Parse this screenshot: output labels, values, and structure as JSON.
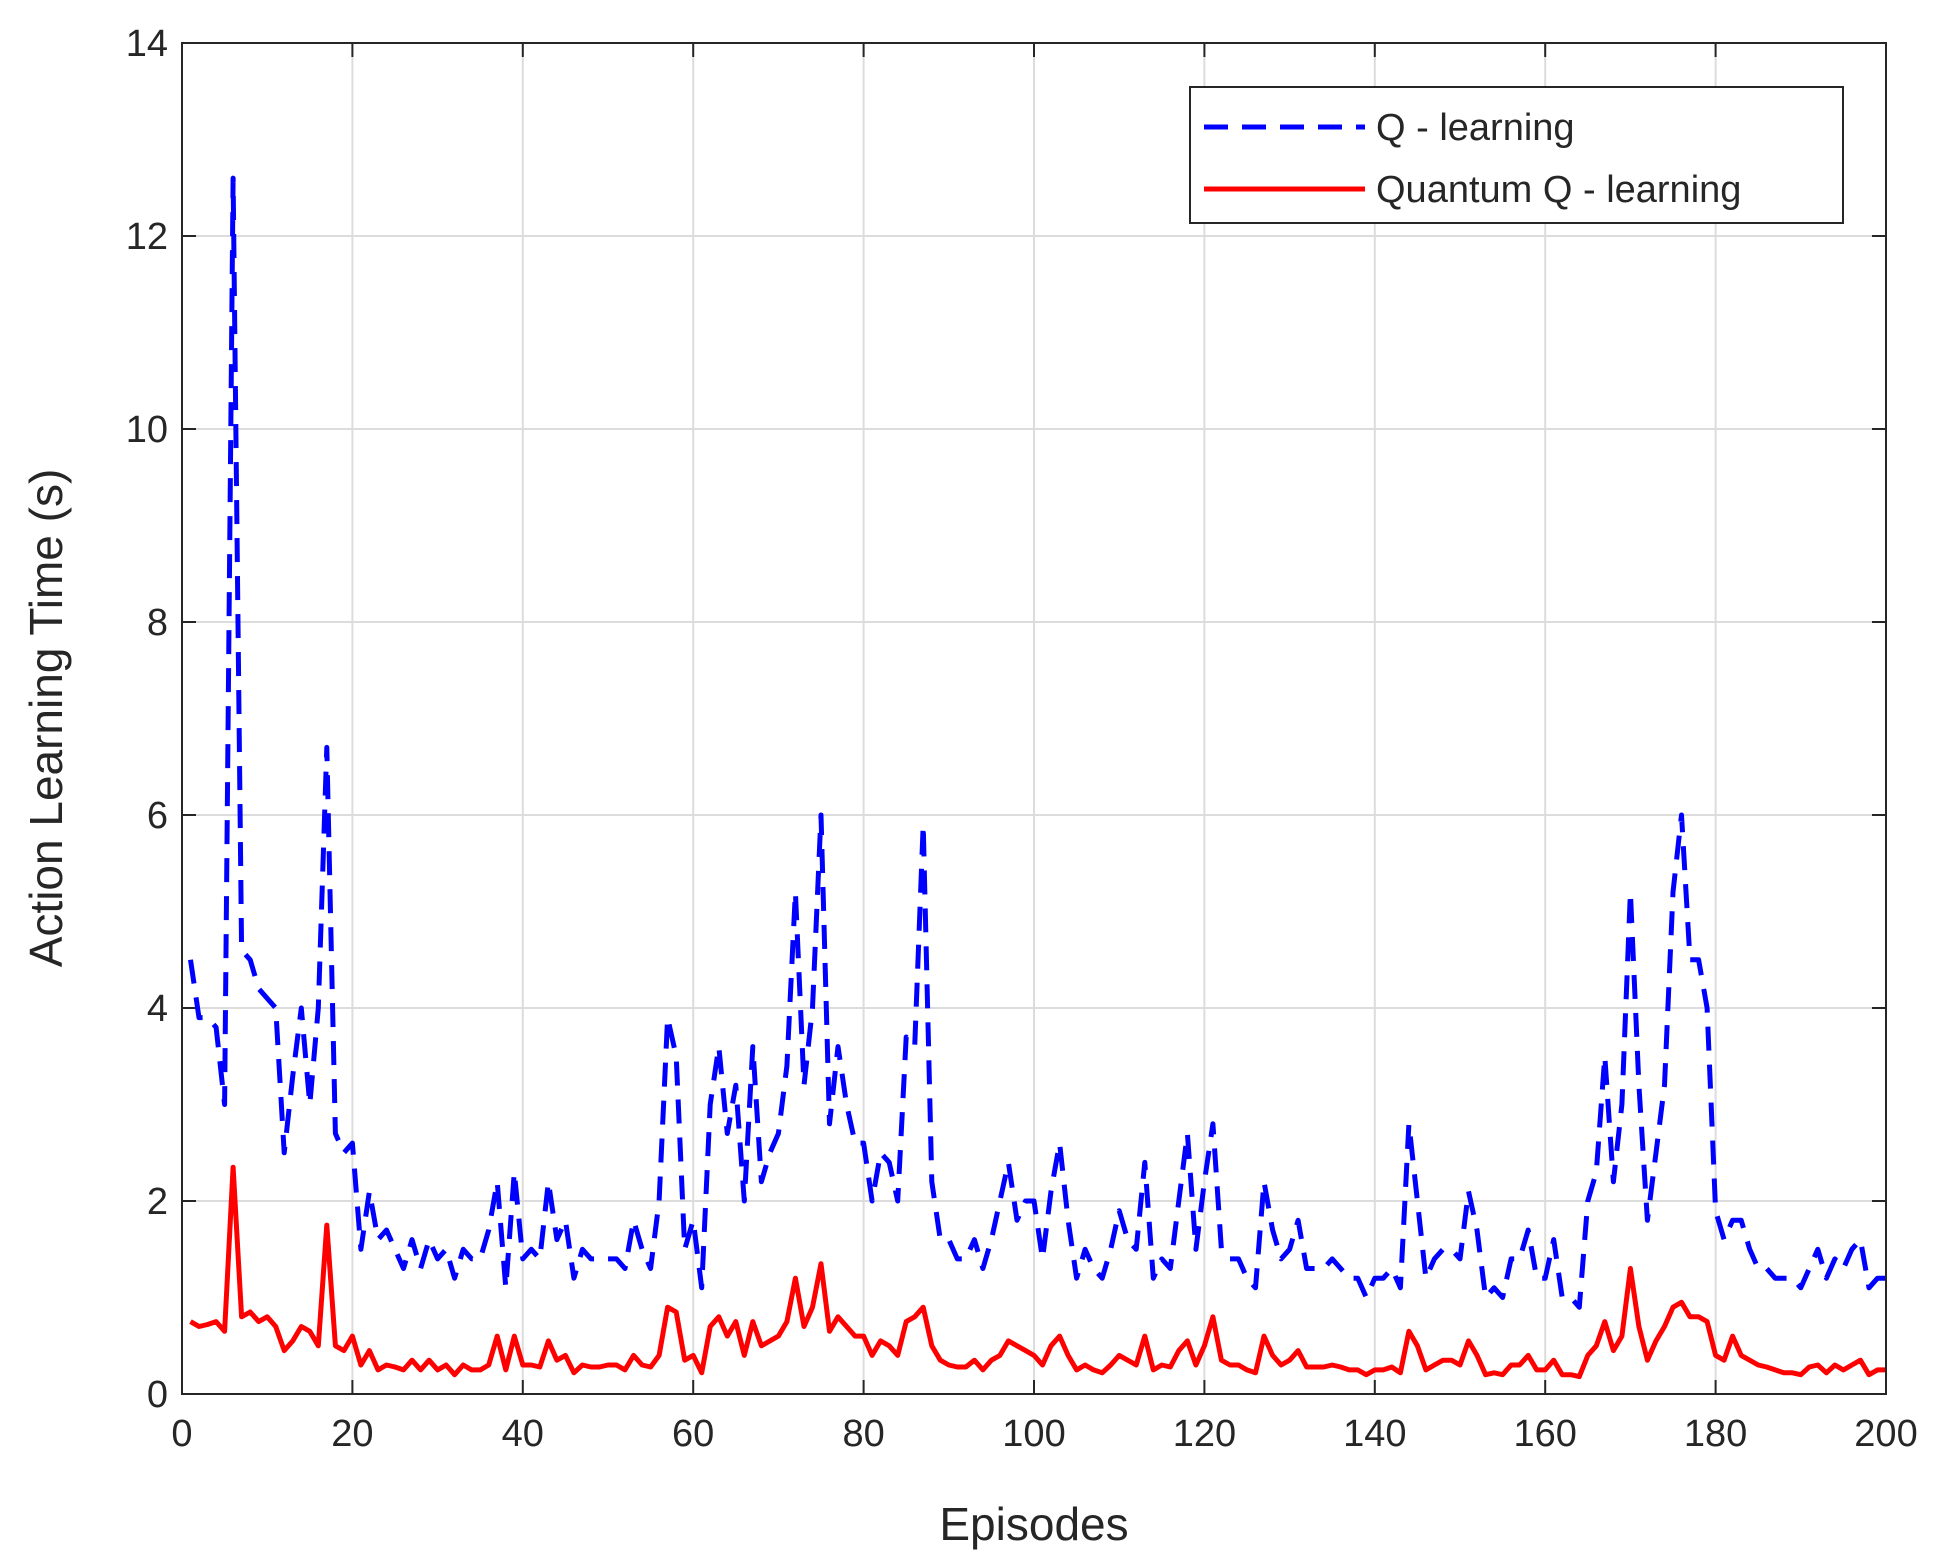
{
  "chart_data": {
    "type": "line",
    "xlabel": "Episodes",
    "ylabel": "Action Learning Time (s)",
    "x": [
      1,
      2,
      3,
      4,
      5,
      6,
      7,
      8,
      9,
      10,
      11,
      12,
      13,
      14,
      15,
      16,
      17,
      18,
      19,
      20,
      21,
      22,
      23,
      24,
      25,
      26,
      27,
      28,
      29,
      30,
      31,
      32,
      33,
      34,
      35,
      36,
      37,
      38,
      39,
      40,
      41,
      42,
      43,
      44,
      45,
      46,
      47,
      48,
      49,
      50,
      51,
      52,
      53,
      54,
      55,
      56,
      57,
      58,
      59,
      60,
      61,
      62,
      63,
      64,
      65,
      66,
      67,
      68,
      69,
      70,
      71,
      72,
      73,
      74,
      75,
      76,
      77,
      78,
      79,
      80,
      81,
      82,
      83,
      84,
      85,
      86,
      87,
      88,
      89,
      90,
      91,
      92,
      93,
      94,
      95,
      96,
      97,
      98,
      99,
      100,
      101,
      102,
      103,
      104,
      105,
      106,
      107,
      108,
      109,
      110,
      111,
      112,
      113,
      114,
      115,
      116,
      117,
      118,
      119,
      120,
      121,
      122,
      123,
      124,
      125,
      126,
      127,
      128,
      129,
      130,
      131,
      132,
      133,
      134,
      135,
      136,
      137,
      138,
      139,
      140,
      141,
      142,
      143,
      144,
      145,
      146,
      147,
      148,
      149,
      150,
      151,
      152,
      153,
      154,
      155,
      156,
      157,
      158,
      159,
      160,
      161,
      162,
      163,
      164,
      165,
      166,
      167,
      168,
      169,
      170,
      171,
      172,
      173,
      174,
      175,
      176,
      177,
      178,
      179,
      180,
      181,
      182,
      183,
      184,
      185,
      186,
      187,
      188,
      189,
      190,
      191,
      192,
      193,
      194,
      195,
      196,
      197,
      198,
      199,
      200
    ],
    "series": [
      {
        "name": "Q - learning",
        "color": "#0000ff",
        "dash": true,
        "values": [
          4.5,
          3.9,
          3.9,
          3.8,
          3.0,
          12.6,
          4.6,
          4.5,
          4.2,
          4.1,
          4.0,
          2.5,
          3.3,
          4.0,
          3.0,
          4.0,
          6.7,
          2.7,
          2.5,
          2.6,
          1.5,
          2.1,
          1.6,
          1.7,
          1.5,
          1.3,
          1.6,
          1.3,
          1.6,
          1.4,
          1.5,
          1.2,
          1.5,
          1.4,
          1.4,
          1.7,
          2.2,
          1.1,
          2.3,
          1.4,
          1.5,
          1.4,
          2.2,
          1.6,
          1.8,
          1.2,
          1.5,
          1.4,
          1.4,
          1.4,
          1.4,
          1.3,
          1.8,
          1.5,
          1.3,
          2.0,
          3.9,
          3.5,
          1.5,
          1.8,
          1.1,
          3.0,
          3.6,
          2.7,
          3.2,
          2.0,
          3.6,
          2.2,
          2.5,
          2.7,
          3.4,
          5.2,
          3.2,
          4.0,
          6.0,
          2.8,
          3.6,
          3.0,
          2.6,
          2.6,
          2.0,
          2.5,
          2.4,
          2.0,
          3.7,
          3.6,
          5.9,
          2.2,
          1.6,
          1.6,
          1.4,
          1.4,
          1.6,
          1.3,
          1.6,
          2.0,
          2.4,
          1.8,
          2.0,
          2.0,
          1.4,
          2.1,
          2.6,
          1.8,
          1.2,
          1.5,
          1.3,
          1.2,
          1.5,
          1.9,
          1.6,
          1.5,
          2.4,
          1.2,
          1.4,
          1.3,
          2.0,
          2.7,
          1.5,
          2.2,
          2.8,
          1.5,
          1.4,
          1.4,
          1.2,
          1.1,
          2.2,
          1.7,
          1.4,
          1.5,
          1.8,
          1.3,
          1.3,
          1.3,
          1.4,
          1.3,
          1.2,
          1.2,
          1.0,
          1.2,
          1.2,
          1.3,
          1.1,
          2.8,
          2.0,
          1.2,
          1.4,
          1.5,
          1.5,
          1.4,
          2.1,
          1.7,
          1.0,
          1.1,
          1.0,
          1.4,
          1.4,
          1.7,
          1.2,
          1.2,
          1.6,
          1.0,
          1.0,
          0.9,
          2.0,
          2.3,
          3.5,
          2.2,
          3.0,
          5.2,
          3.2,
          1.8,
          2.5,
          3.2,
          5.2,
          6.0,
          4.5,
          4.5,
          4.0,
          1.9,
          1.6,
          1.8,
          1.8,
          1.5,
          1.3,
          1.3,
          1.2,
          1.2,
          1.2,
          1.1,
          1.3,
          1.5,
          1.2,
          1.4,
          1.3,
          1.5,
          1.6,
          1.1,
          1.2,
          1.2
        ]
      },
      {
        "name": "Quantum Q - learning",
        "color": "#ff0000",
        "dash": false,
        "values": [
          0.75,
          0.7,
          0.72,
          0.75,
          0.65,
          2.35,
          0.8,
          0.85,
          0.75,
          0.8,
          0.7,
          0.45,
          0.55,
          0.7,
          0.65,
          0.5,
          1.75,
          0.5,
          0.45,
          0.6,
          0.3,
          0.45,
          0.25,
          0.3,
          0.28,
          0.25,
          0.35,
          0.25,
          0.35,
          0.25,
          0.3,
          0.2,
          0.3,
          0.25,
          0.25,
          0.3,
          0.6,
          0.25,
          0.6,
          0.3,
          0.3,
          0.28,
          0.55,
          0.35,
          0.4,
          0.22,
          0.3,
          0.28,
          0.28,
          0.3,
          0.3,
          0.25,
          0.4,
          0.3,
          0.28,
          0.4,
          0.9,
          0.85,
          0.35,
          0.4,
          0.22,
          0.7,
          0.8,
          0.6,
          0.75,
          0.4,
          0.75,
          0.5,
          0.55,
          0.6,
          0.75,
          1.2,
          0.7,
          0.9,
          1.35,
          0.65,
          0.8,
          0.7,
          0.6,
          0.6,
          0.4,
          0.55,
          0.5,
          0.4,
          0.75,
          0.8,
          0.9,
          0.5,
          0.35,
          0.3,
          0.28,
          0.28,
          0.35,
          0.25,
          0.35,
          0.4,
          0.55,
          0.5,
          0.45,
          0.4,
          0.3,
          0.5,
          0.6,
          0.4,
          0.25,
          0.3,
          0.25,
          0.22,
          0.3,
          0.4,
          0.35,
          0.3,
          0.6,
          0.25,
          0.3,
          0.28,
          0.45,
          0.55,
          0.3,
          0.5,
          0.8,
          0.35,
          0.3,
          0.3,
          0.25,
          0.22,
          0.6,
          0.4,
          0.3,
          0.35,
          0.45,
          0.28,
          0.28,
          0.28,
          0.3,
          0.28,
          0.25,
          0.25,
          0.2,
          0.25,
          0.25,
          0.28,
          0.22,
          0.65,
          0.5,
          0.25,
          0.3,
          0.35,
          0.35,
          0.3,
          0.55,
          0.4,
          0.2,
          0.22,
          0.2,
          0.3,
          0.3,
          0.4,
          0.25,
          0.25,
          0.35,
          0.2,
          0.2,
          0.18,
          0.4,
          0.5,
          0.75,
          0.45,
          0.6,
          1.3,
          0.7,
          0.35,
          0.55,
          0.7,
          0.9,
          0.95,
          0.8,
          0.8,
          0.75,
          0.4,
          0.35,
          0.6,
          0.4,
          0.35,
          0.3,
          0.28,
          0.25,
          0.22,
          0.22,
          0.2,
          0.28,
          0.3,
          0.22,
          0.3,
          0.25,
          0.3,
          0.35,
          0.2,
          0.25,
          0.25
        ]
      }
    ],
    "xlim": [
      0,
      200
    ],
    "xticks": [
      0,
      20,
      40,
      60,
      80,
      100,
      120,
      140,
      160,
      180,
      200
    ],
    "ylim": [
      0,
      14
    ],
    "yticks": [
      0,
      2,
      4,
      6,
      8,
      10,
      12,
      14
    ],
    "grid": true,
    "legend": "upper right"
  }
}
